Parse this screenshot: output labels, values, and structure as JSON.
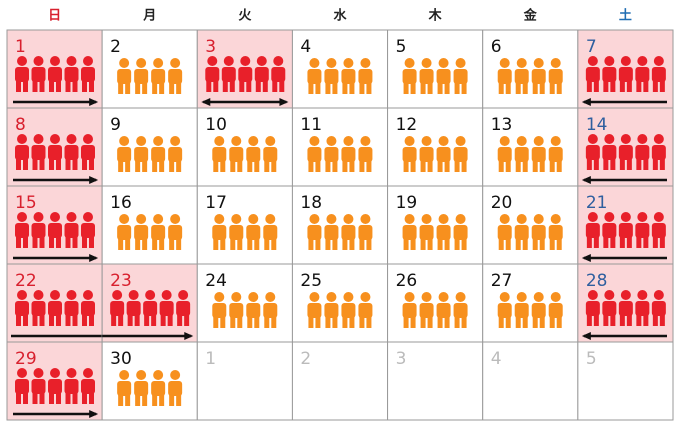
{
  "weekdays": [
    "日",
    "月",
    "火",
    "水",
    "木",
    "金",
    "土"
  ],
  "weeks": [
    [
      {
        "day": 1,
        "kind": "peak",
        "arrow": "right"
      },
      {
        "day": 2,
        "kind": "normal"
      },
      {
        "day": 3,
        "kind": "peak",
        "arrow": "both"
      },
      {
        "day": 4,
        "kind": "normal"
      },
      {
        "day": 5,
        "kind": "normal"
      },
      {
        "day": 6,
        "kind": "normal"
      },
      {
        "day": 7,
        "kind": "peak",
        "arrow": "left"
      }
    ],
    [
      {
        "day": 8,
        "kind": "peak",
        "arrow": "right"
      },
      {
        "day": 9,
        "kind": "normal"
      },
      {
        "day": 10,
        "kind": "normal"
      },
      {
        "day": 11,
        "kind": "normal"
      },
      {
        "day": 12,
        "kind": "normal"
      },
      {
        "day": 13,
        "kind": "normal"
      },
      {
        "day": 14,
        "kind": "peak",
        "arrow": "left"
      }
    ],
    [
      {
        "day": 15,
        "kind": "peak",
        "arrow": "right"
      },
      {
        "day": 16,
        "kind": "normal"
      },
      {
        "day": 17,
        "kind": "normal"
      },
      {
        "day": 18,
        "kind": "normal"
      },
      {
        "day": 19,
        "kind": "normal"
      },
      {
        "day": 20,
        "kind": "normal"
      },
      {
        "day": 21,
        "kind": "peak",
        "arrow": "left"
      }
    ],
    [
      {
        "day": 22,
        "kind": "peak",
        "arrow": "line"
      },
      {
        "day": 23,
        "kind": "peak",
        "arrow": "right"
      },
      {
        "day": 24,
        "kind": "normal"
      },
      {
        "day": 25,
        "kind": "normal"
      },
      {
        "day": 26,
        "kind": "normal"
      },
      {
        "day": 27,
        "kind": "normal"
      },
      {
        "day": 28,
        "kind": "peak",
        "arrow": "left"
      }
    ],
    [
      {
        "day": 29,
        "kind": "peak",
        "arrow": "right"
      },
      {
        "day": 30,
        "kind": "normal"
      },
      {
        "day": 1,
        "kind": "other"
      },
      {
        "day": 2,
        "kind": "other"
      },
      {
        "day": 3,
        "kind": "other"
      },
      {
        "day": 4,
        "kind": "other"
      },
      {
        "day": 5,
        "kind": "other"
      }
    ]
  ]
}
